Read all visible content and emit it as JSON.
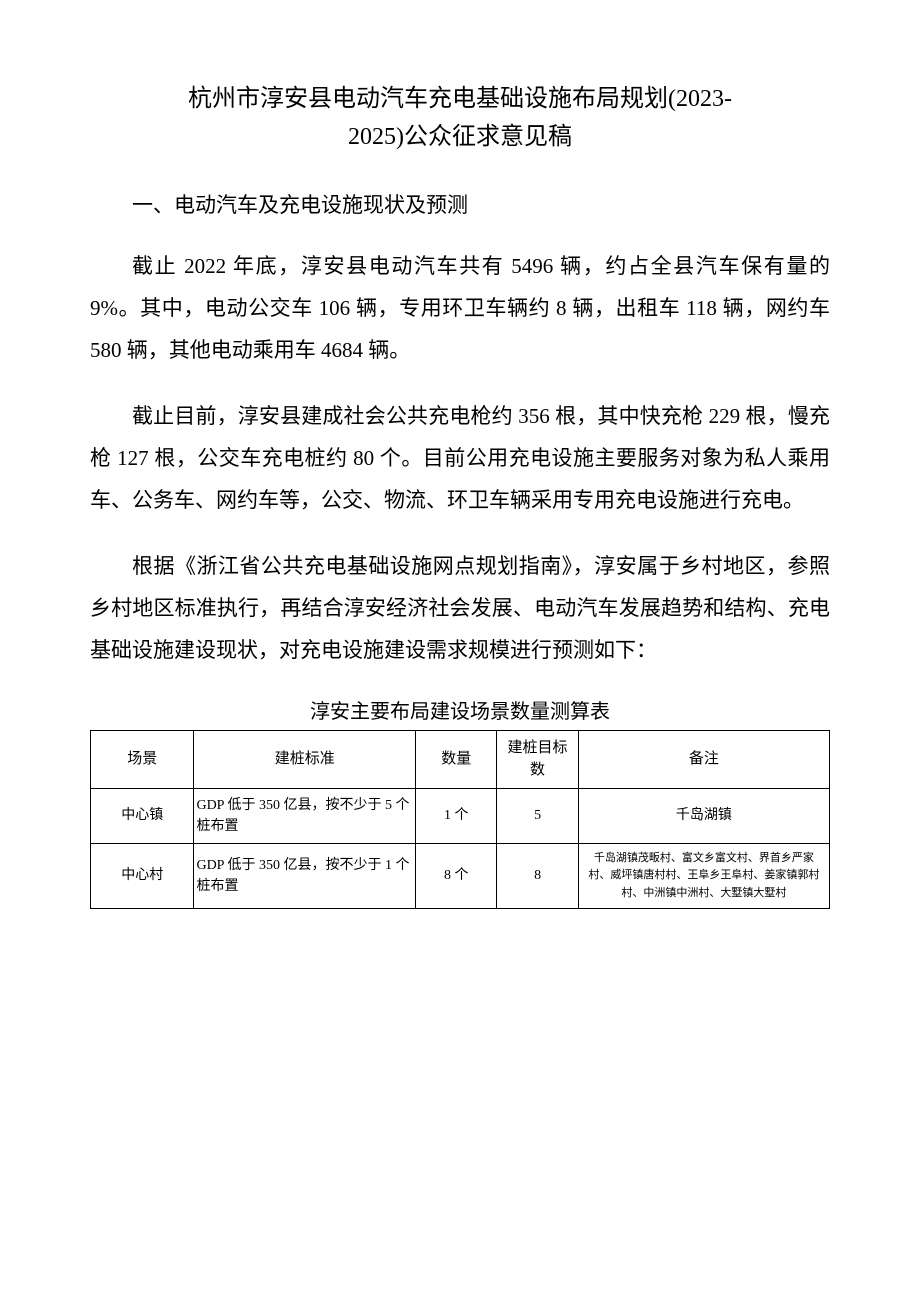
{
  "title": {
    "line1": "杭州市淳安县电动汽车充电基础设施布局规划(2023-",
    "line2": "2025)公众征求意见稿"
  },
  "section1_heading": "一、电动汽车及充电设施现状及预测",
  "paragraph1": "截止 2022 年底，淳安县电动汽车共有 5496 辆，约占全县汽车保有量的 9%。其中，电动公交车 106 辆，专用环卫车辆约 8 辆，出租车 118 辆，网约车 580 辆，其他电动乘用车 4684 辆。",
  "paragraph2": "截止目前，淳安县建成社会公共充电枪约 356 根，其中快充枪 229 根，慢充枪 127 根，公交车充电桩约 80 个。目前公用充电设施主要服务对象为私人乘用车、公务车、网约车等，公交、物流、环卫车辆采用专用充电设施进行充电。",
  "paragraph3": "根据《浙江省公共充电基础设施网点规划指南》，淳安属于乡村地区，参照乡村地区标准执行，再结合淳安经济社会发展、电动汽车发展趋势和结构、充电基础设施建设现状，对充电设施建设需求规模进行预测如下：",
  "table": {
    "caption": "淳安主要布局建设场景数量测算表",
    "columns": {
      "scene": "场景",
      "standard": "建桩标准",
      "quantity": "数量",
      "target": "建桩目标数",
      "remark": "备注"
    },
    "rows": [
      {
        "scene": "中心镇",
        "standard": "GDP 低于 350 亿县，按不少于 5 个桩布置",
        "quantity": "1 个",
        "target": "5",
        "remark": "千岛湖镇",
        "remark_small": false
      },
      {
        "scene": "中心村",
        "standard": "GDP 低于 350 亿县，按不少于 1 个桩布置",
        "quantity": "8 个",
        "target": "8",
        "remark": "千岛湖镇茂畈村、富文乡富文村、界首乡严家村、威坪镇唐村村、王阜乡王阜村、姜家镇郭村村、中洲镇中洲村、大墅镇大墅村",
        "remark_small": true
      }
    ]
  },
  "styles": {
    "background_color": "#ffffff",
    "text_color": "#000000",
    "title_fontsize": 24,
    "body_fontsize": 21,
    "table_fontsize": 14,
    "table_header_fontsize": 15,
    "remark_small_fontsize": 11,
    "border_color": "#000000"
  }
}
